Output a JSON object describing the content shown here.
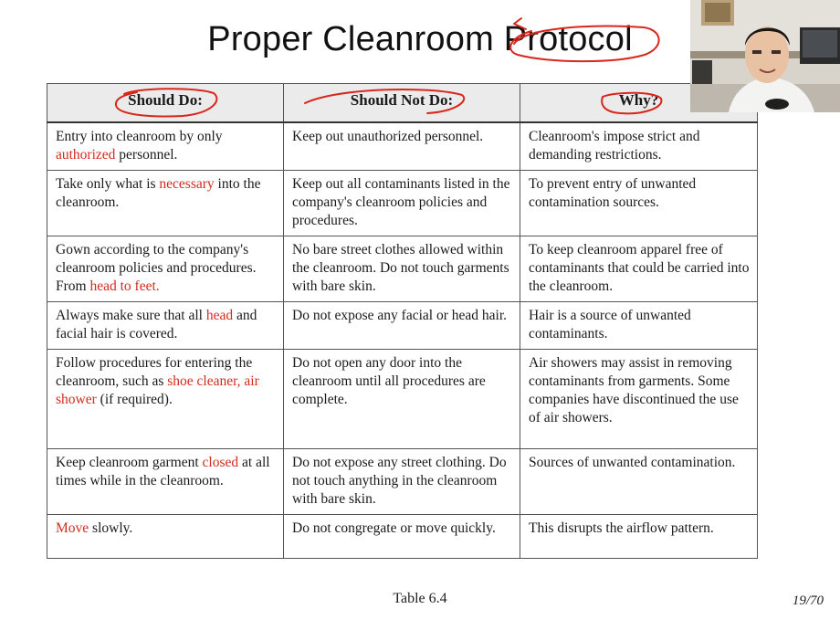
{
  "slide": {
    "title": "Proper Cleanroom Protocol",
    "caption": "Table 6.4",
    "page_indicator": "19/70"
  },
  "colors": {
    "highlight_red": "#d42a1e",
    "annotation_red": "#d8271c",
    "header_bg": "#ebebeb"
  },
  "table": {
    "headers": [
      "Should Do:",
      "Should Not Do:",
      "Why?"
    ],
    "rows": [
      {
        "do": [
          {
            "t": "Entry into cleanroom by only "
          },
          {
            "t": "authorized",
            "hl": true
          },
          {
            "t": " personnel."
          }
        ],
        "dont": "Keep out unauthorized personnel.",
        "why": "Cleanroom's impose strict and demanding restrictions."
      },
      {
        "do": [
          {
            "t": "Take only what is "
          },
          {
            "t": "necessary",
            "hl": true
          },
          {
            "t": " into the cleanroom."
          }
        ],
        "dont": "Keep out all contaminants listed in the company's cleanroom policies and procedures.",
        "why": "To prevent entry of unwanted contamination sources."
      },
      {
        "do": [
          {
            "t": "Gown according to the company's cleanroom policies and procedures. From "
          },
          {
            "t": "head to feet.",
            "hl": true
          }
        ],
        "dont": "No bare street clothes allowed within the cleanroom. Do not touch garments with bare skin.",
        "why": "To keep cleanroom apparel free of contaminants that could be carried into the cleanroom."
      },
      {
        "do": [
          {
            "t": "Always make sure that all "
          },
          {
            "t": "head",
            "hl": true
          },
          {
            "t": " and facial hair is covered."
          }
        ],
        "dont": "Do not expose any facial or head hair.",
        "why": "Hair is a source of unwanted contaminants."
      },
      {
        "do": [
          {
            "t": "Follow procedures for entering the cleanroom, such as "
          },
          {
            "t": "shoe cleaner, air shower",
            "hl": true
          },
          {
            "t": " (if required)."
          }
        ],
        "dont": "Do not open any door into the cleanroom until all procedures are complete.",
        "why": "Air showers may assist in removing contaminants from garments. Some companies have discontinued the use of air showers."
      },
      {
        "do": [
          {
            "t": "Keep cleanroom garment "
          },
          {
            "t": "closed",
            "hl": true
          },
          {
            "t": " at all times while in the cleanroom."
          }
        ],
        "dont": "Do not expose any street clothing. Do not touch anything in the cleanroom with bare skin.",
        "why": "Sources of unwanted contamination."
      },
      {
        "do": [
          {
            "t": "Move",
            "hl": true
          },
          {
            "t": " slowly."
          }
        ],
        "dont": "Do not congregate or move quickly.",
        "why": "This disrupts the airflow pattern."
      }
    ]
  }
}
